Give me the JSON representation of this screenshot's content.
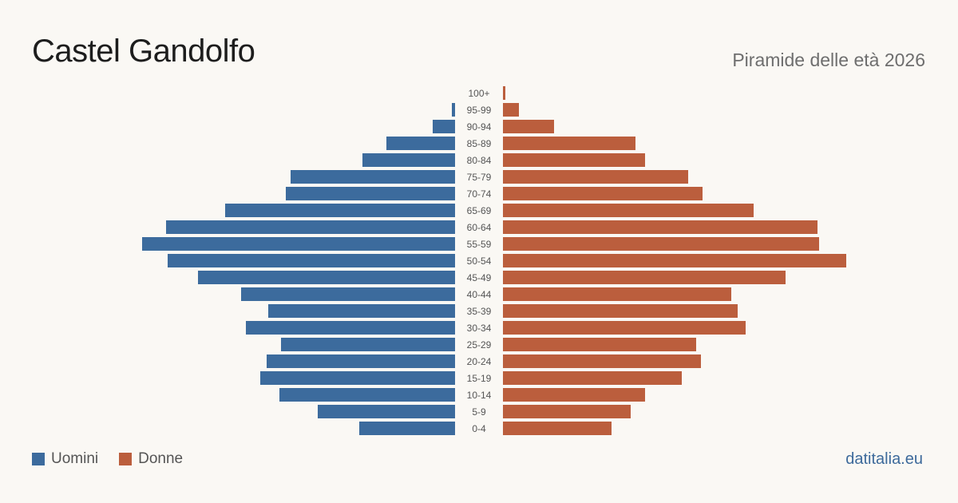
{
  "header": {
    "title": "Castel Gandolfo",
    "subtitle": "Piramide delle età 2026"
  },
  "legend": {
    "male_label": "Uomini",
    "female_label": "Donne"
  },
  "brand": "datitalia.eu",
  "colors": {
    "male": "#3c6b9d",
    "female": "#bb5e3d",
    "age_label": "#555555"
  },
  "chart_data": {
    "type": "bar",
    "orientation": "horizontal-pyramid",
    "title": "Piramide delle età 2026",
    "categories": [
      "100+",
      "95-99",
      "90-94",
      "85-89",
      "80-84",
      "75-79",
      "70-74",
      "65-69",
      "60-64",
      "55-59",
      "50-54",
      "45-49",
      "40-44",
      "35-39",
      "30-34",
      "25-29",
      "20-24",
      "15-19",
      "10-14",
      "5-9",
      "0-4"
    ],
    "series": [
      {
        "name": "Uomini",
        "values": [
          0,
          2,
          14,
          43,
          58,
          103,
          106,
          144,
          181,
          196,
          180,
          161,
          134,
          117,
          131,
          109,
          118,
          122,
          110,
          86,
          60
        ]
      },
      {
        "name": "Donne",
        "values": [
          1,
          10,
          32,
          83,
          89,
          116,
          125,
          157,
          197,
          198,
          215,
          177,
          143,
          147,
          152,
          121,
          124,
          112,
          89,
          80,
          68
        ]
      }
    ],
    "xlim": [
      0,
      220
    ]
  }
}
